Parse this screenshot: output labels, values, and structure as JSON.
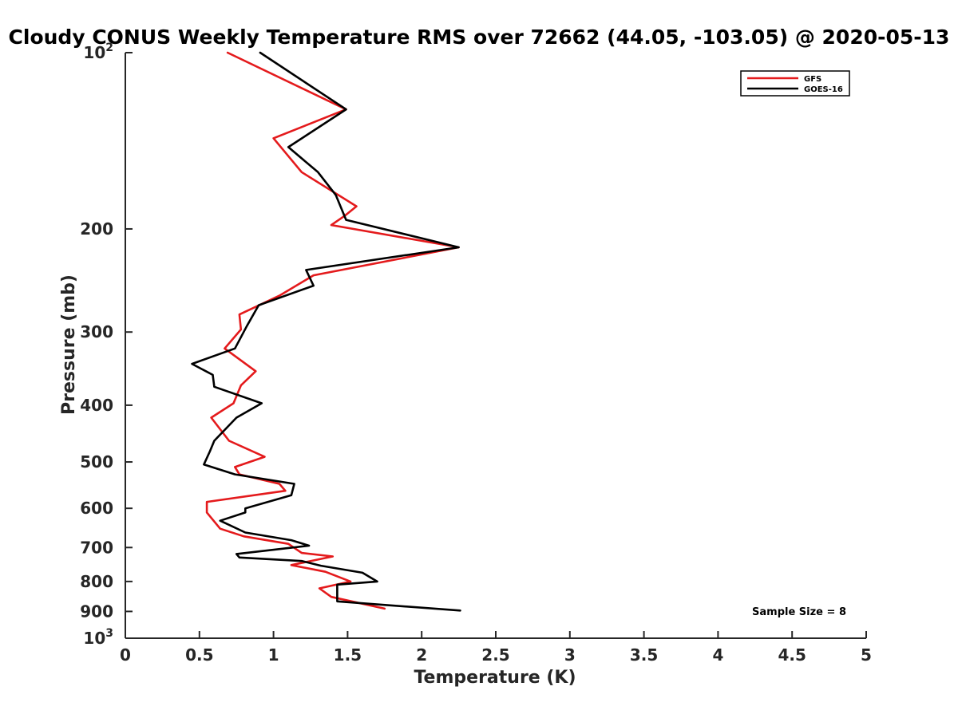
{
  "chart_data": {
    "type": "line",
    "title": "Cloudy CONUS Weekly Temperature RMS over 72662 (44.05, -103.05) @ 2020-05-13",
    "xlabel": "Temperature (K)",
    "ylabel": "Pressure (mb)",
    "xlim": [
      0,
      5
    ],
    "ylim": [
      100,
      1000
    ],
    "yscale": "log",
    "y_reversed": true,
    "x_ticks": [
      0,
      0.5,
      1,
      1.5,
      2,
      2.5,
      3,
      3.5,
      4,
      4.5,
      5
    ],
    "x_tick_labels": [
      "0",
      "0.5",
      "1",
      "1.5",
      "2",
      "2.5",
      "3",
      "3.5",
      "4",
      "4.5",
      "5"
    ],
    "y_ticks": [
      {
        "value": 100,
        "base": "10",
        "exp": "2",
        "label": ""
      },
      {
        "value": 200,
        "label": "200"
      },
      {
        "value": 300,
        "label": "300"
      },
      {
        "value": 400,
        "label": "400"
      },
      {
        "value": 500,
        "label": "500"
      },
      {
        "value": 600,
        "label": "600"
      },
      {
        "value": 700,
        "label": "700"
      },
      {
        "value": 800,
        "label": "800"
      },
      {
        "value": 900,
        "label": "900"
      },
      {
        "value": 1000,
        "base": "10",
        "exp": "3",
        "label": ""
      }
    ],
    "grid": false,
    "legend_position": "top-right",
    "annotation": "Sample Size = 8",
    "series": [
      {
        "name": "GFS",
        "color": "#e41a1c",
        "points": [
          [
            0.69,
            100
          ],
          [
            1.49,
            125
          ],
          [
            1.0,
            140
          ],
          [
            1.19,
            160
          ],
          [
            1.56,
            183
          ],
          [
            1.48,
            190
          ],
          [
            1.39,
            197
          ],
          [
            2.25,
            215
          ],
          [
            1.27,
            240
          ],
          [
            1.04,
            260
          ],
          [
            0.77,
            280
          ],
          [
            0.78,
            297
          ],
          [
            0.67,
            320
          ],
          [
            0.88,
            350
          ],
          [
            0.78,
            370
          ],
          [
            0.73,
            397
          ],
          [
            0.58,
            420
          ],
          [
            0.7,
            460
          ],
          [
            0.94,
            490
          ],
          [
            0.74,
            510
          ],
          [
            0.77,
            525
          ],
          [
            1.04,
            545
          ],
          [
            1.08,
            560
          ],
          [
            0.55,
            585
          ],
          [
            0.55,
            610
          ],
          [
            0.64,
            650
          ],
          [
            0.8,
            670
          ],
          [
            1.1,
            690
          ],
          [
            1.19,
            715
          ],
          [
            1.4,
            725
          ],
          [
            1.12,
            750
          ],
          [
            1.35,
            770
          ],
          [
            1.52,
            800
          ],
          [
            1.31,
            822
          ],
          [
            1.39,
            850
          ],
          [
            1.75,
            890
          ]
        ]
      },
      {
        "name": "GOES-16",
        "color": "#000000",
        "points": [
          [
            0.91,
            100
          ],
          [
            1.49,
            125
          ],
          [
            1.1,
            145
          ],
          [
            1.3,
            160
          ],
          [
            1.42,
            175
          ],
          [
            1.49,
            193
          ],
          [
            2.25,
            215
          ],
          [
            1.22,
            235
          ],
          [
            1.27,
            250
          ],
          [
            0.9,
            270
          ],
          [
            0.82,
            293
          ],
          [
            0.74,
            320
          ],
          [
            0.45,
            340
          ],
          [
            0.59,
            355
          ],
          [
            0.6,
            372
          ],
          [
            0.92,
            397
          ],
          [
            0.75,
            420
          ],
          [
            0.6,
            460
          ],
          [
            0.57,
            480
          ],
          [
            0.53,
            505
          ],
          [
            0.74,
            525
          ],
          [
            1.14,
            545
          ],
          [
            1.12,
            570
          ],
          [
            0.81,
            600
          ],
          [
            0.81,
            610
          ],
          [
            0.64,
            630
          ],
          [
            0.81,
            660
          ],
          [
            1.12,
            680
          ],
          [
            1.24,
            695
          ],
          [
            0.75,
            718
          ],
          [
            0.77,
            728
          ],
          [
            1.19,
            738
          ],
          [
            1.32,
            752
          ],
          [
            1.6,
            773
          ],
          [
            1.7,
            800
          ],
          [
            1.43,
            810
          ],
          [
            1.43,
            840
          ],
          [
            1.43,
            865
          ],
          [
            2.26,
            897
          ]
        ]
      }
    ]
  }
}
